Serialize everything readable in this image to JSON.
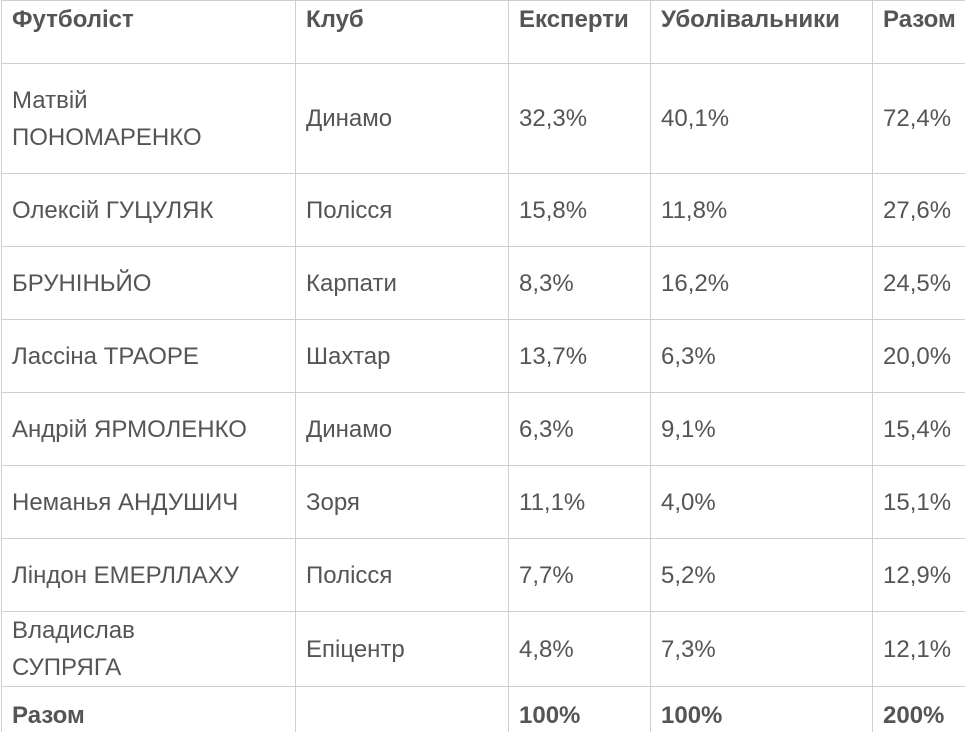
{
  "table": {
    "header": [
      "Футболіст",
      "Клуб",
      "Експерти",
      "Уболівальники",
      "Разом"
    ],
    "rows": [
      [
        "Матвій ПОНОМАРЕНКО",
        "Динамо",
        "32,3%",
        "40,1%",
        "72,4%"
      ],
      [
        "Олексій ГУЦУЛЯК",
        "Полісся",
        "15,8%",
        "11,8%",
        "27,6%"
      ],
      [
        "БРУНІНЬЙО",
        "Карпати",
        "8,3%",
        "16,2%",
        "24,5%"
      ],
      [
        "Лассіна ТРАОРЕ",
        "Шахтар",
        "13,7%",
        "6,3%",
        "20,0%"
      ],
      [
        "Андрій ЯРМОЛЕНКО",
        "Динамо",
        "6,3%",
        "9,1%",
        "15,4%"
      ],
      [
        "Неманья АНДУШИЧ",
        "Зоря",
        "11,1%",
        "4,0%",
        "15,1%"
      ],
      [
        "Ліндон ЕМЕРЛЛАХУ",
        "Полісся",
        "7,7%",
        "5,2%",
        "12,9%"
      ],
      [
        "Владислав СУПРЯГА",
        "Епіцентр",
        "4,8%",
        "7,3%",
        "12,1%"
      ]
    ],
    "footer": {
      "label": "Разом",
      "experts": "100%",
      "fans": "100%",
      "total": "200%"
    }
  }
}
